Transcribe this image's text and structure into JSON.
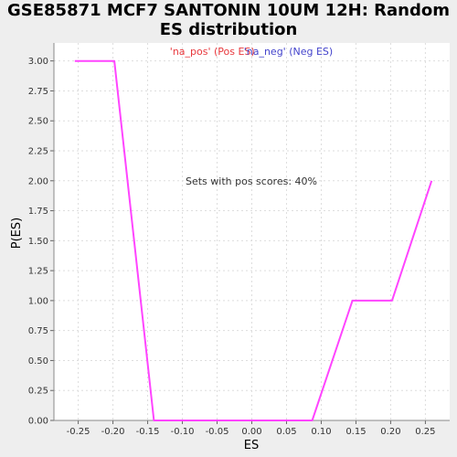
{
  "title_line1": "GSE85871 MCF7 SANTONIN 10UM 12H: Random",
  "title_line2": "ES distribution",
  "legend": {
    "pos_label": "'na_pos' (Pos ES)",
    "neg_label": "'na_neg' (Neg ES)",
    "pos_color": "#e8383d",
    "neg_color": "#4444cc"
  },
  "annotation": "Sets with pos scores: 40%",
  "chart_data": {
    "type": "line",
    "title": "GSE85871 MCF7 SANTONIN 10UM 12H: Random ES distribution",
    "xlabel": "ES",
    "ylabel": "P(ES)",
    "xlim": [
      -0.285,
      0.285
    ],
    "ylim": [
      0,
      3.15
    ],
    "xticks": [
      -0.25,
      -0.2,
      -0.15,
      -0.1,
      -0.05,
      0.0,
      0.05,
      0.1,
      0.15,
      0.2,
      0.25
    ],
    "xtick_labels": [
      "-0.25",
      "-0.20",
      "-0.15",
      "-0.10",
      "-0.05",
      "0.00",
      "0.05",
      "0.10",
      "0.15",
      "0.20",
      "0.25"
    ],
    "yticks": [
      0,
      0.25,
      0.5,
      0.75,
      1.0,
      1.25,
      1.5,
      1.75,
      2.0,
      2.25,
      2.5,
      2.75,
      3.0
    ],
    "ytick_labels": [
      "0.00",
      "0.25",
      "0.50",
      "0.75",
      "1.00",
      "1.25",
      "1.50",
      "1.75",
      "2.00",
      "2.25",
      "2.50",
      "2.75",
      "3.00"
    ],
    "grid": true,
    "series": [
      {
        "color": "#ff44ff",
        "x": [
          -0.255,
          -0.198,
          -0.141,
          -0.084,
          -0.027,
          0.03,
          0.087,
          0.145,
          0.202,
          0.259
        ],
        "y": [
          3.0,
          3.0,
          0.0,
          0.0,
          0.0,
          0.0,
          0.0,
          1.0,
          1.0,
          2.0
        ]
      }
    ]
  }
}
